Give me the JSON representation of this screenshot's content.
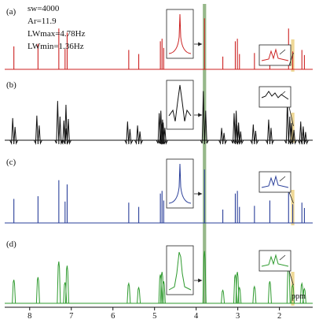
{
  "figure": {
    "params": [
      "sw=4000",
      "Ar=11.9",
      "LWmax=4.78Hz",
      "LWmin=1.36Hz"
    ]
  },
  "colors": {
    "a": "#cc2222",
    "b": "#111111",
    "c": "#2a3f9a",
    "d": "#2e9a2e",
    "highlight_green": "#3f7d2a",
    "highlight_yellow": "#e8c86a"
  },
  "chart_data": {
    "type": "line",
    "xlabel": "ppm",
    "xlim": [
      8.6,
      1.2
    ],
    "x_reversed": true,
    "x_ticks": [
      8,
      7,
      6,
      5,
      4,
      3,
      2
    ],
    "highlight_regions_ppm": [
      [
        3.84,
        3.76
      ],
      [
        1.72,
        1.64
      ]
    ],
    "peaks_ppm": [
      {
        "ppm": 8.38,
        "h": 0.45
      },
      {
        "ppm": 7.8,
        "h": 0.5
      },
      {
        "ppm": 7.3,
        "h": 0.8
      },
      {
        "ppm": 7.15,
        "h": 0.4
      },
      {
        "ppm": 7.1,
        "h": 0.72
      },
      {
        "ppm": 5.62,
        "h": 0.38
      },
      {
        "ppm": 5.38,
        "h": 0.3
      },
      {
        "ppm": 4.86,
        "h": 0.55
      },
      {
        "ppm": 4.82,
        "h": 0.6
      },
      {
        "ppm": 4.78,
        "h": 0.42
      },
      {
        "ppm": 3.8,
        "h": 1.0
      },
      {
        "ppm": 3.36,
        "h": 0.25
      },
      {
        "ppm": 3.06,
        "h": 0.55
      },
      {
        "ppm": 3.01,
        "h": 0.6
      },
      {
        "ppm": 2.96,
        "h": 0.3
      },
      {
        "ppm": 2.6,
        "h": 0.32
      },
      {
        "ppm": 2.23,
        "h": 0.42
      },
      {
        "ppm": 1.78,
        "h": 0.8
      },
      {
        "ppm": 1.68,
        "h": 0.35
      },
      {
        "ppm": 1.46,
        "h": 0.38
      },
      {
        "ppm": 1.4,
        "h": 0.28
      }
    ],
    "panels": [
      {
        "label": "(a)",
        "color_key": "a",
        "artifact": "none"
      },
      {
        "label": "(b)",
        "color_key": "b",
        "artifact": "ringing"
      },
      {
        "label": "(c)",
        "color_key": "c",
        "artifact": "none"
      },
      {
        "label": "(d)",
        "color_key": "d",
        "artifact": "wiggle"
      }
    ]
  }
}
